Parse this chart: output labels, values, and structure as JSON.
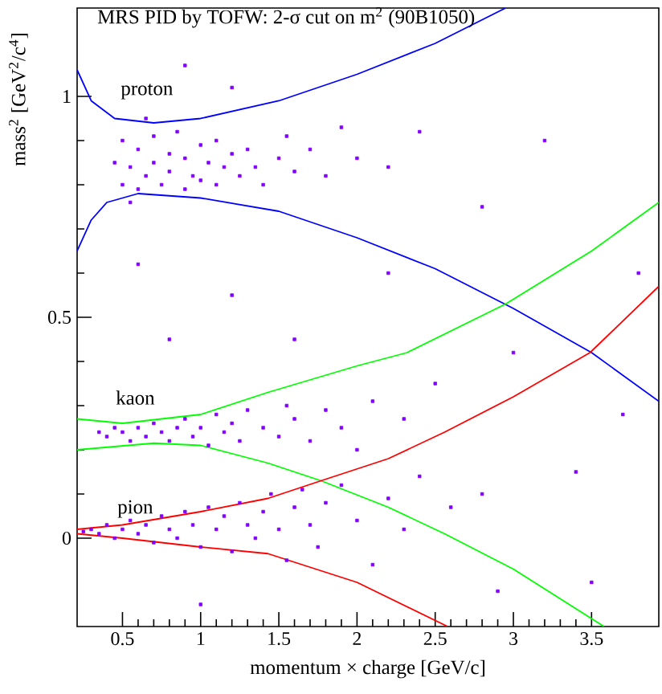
{
  "chart_data": {
    "type": "scatter",
    "title": "MRS PID by TOFW: 2-σ cut on m$^{2}$ (90B1050)",
    "xlabel": "momentum × charge [GeV/c]",
    "ylabel": "mass$^{2}$ [GeV$^{2}$/c$^{4}$]",
    "xlim": [
      0.21,
      3.93
    ],
    "ylim": [
      -0.2,
      1.2
    ],
    "xticks": [
      {
        "value": 0.5,
        "label": "0.5"
      },
      {
        "value": 1,
        "label": "1"
      },
      {
        "value": 1.5,
        "label": "1.5"
      },
      {
        "value": 2,
        "label": "2"
      },
      {
        "value": 2.5,
        "label": "2.5"
      },
      {
        "value": 3,
        "label": "3"
      },
      {
        "value": 3.5,
        "label": "3.5"
      }
    ],
    "yticks": [
      {
        "value": 0,
        "label": "0"
      },
      {
        "value": 0.5,
        "label": "0.5"
      },
      {
        "value": 1,
        "label": "1"
      }
    ],
    "annotations": [
      "proton",
      "kaon",
      "pion"
    ],
    "series": [
      {
        "color": "#8000ff",
        "marker": "square",
        "x": [
          0.45,
          0.5,
          0.5,
          0.55,
          0.6,
          0.6,
          0.65,
          0.7,
          0.7,
          0.75,
          0.8,
          0.8,
          0.85,
          0.9,
          0.9,
          0.95,
          1.0,
          1.0,
          1.05,
          1.1,
          1.1,
          1.15,
          1.2,
          1.25,
          1.3,
          1.35,
          1.4,
          1.5,
          1.55,
          1.6,
          1.7,
          1.8,
          1.9,
          2.0,
          2.2,
          2.4,
          0.65,
          0.55,
          1.2,
          0.9,
          0.35,
          0.4,
          0.45,
          0.5,
          0.55,
          0.6,
          0.65,
          0.7,
          0.75,
          0.8,
          0.85,
          0.9,
          0.95,
          1.0,
          1.05,
          1.1,
          1.15,
          1.2,
          1.25,
          1.3,
          1.4,
          1.5,
          1.55,
          1.6,
          1.7,
          1.8,
          1.9,
          2.1,
          2.3,
          2.0,
          0.25,
          0.3,
          0.35,
          0.4,
          0.45,
          0.5,
          0.55,
          0.6,
          0.65,
          0.7,
          0.75,
          0.8,
          0.85,
          0.9,
          0.95,
          1.0,
          1.05,
          1.1,
          1.15,
          1.2,
          1.25,
          1.3,
          1.35,
          1.4,
          1.45,
          1.5,
          1.55,
          1.6,
          1.65,
          1.7,
          1.75,
          1.8,
          1.9,
          2.0,
          2.1,
          2.2,
          2.3,
          2.4,
          2.6,
          2.8,
          0.6,
          1.2,
          2.5,
          3.0,
          3.4,
          3.7,
          3.8,
          2.8,
          3.2,
          2.2,
          1.6,
          0.8,
          3.5,
          1.0,
          2.9
        ],
        "values": [
          0.85,
          0.8,
          0.9,
          0.84,
          0.88,
          0.79,
          0.82,
          0.91,
          0.85,
          0.8,
          0.87,
          0.83,
          0.92,
          0.79,
          0.86,
          0.82,
          0.89,
          0.81,
          0.85,
          0.9,
          0.8,
          0.84,
          0.87,
          0.82,
          0.88,
          0.84,
          0.8,
          0.86,
          0.91,
          0.83,
          0.88,
          0.82,
          0.93,
          0.86,
          0.84,
          0.92,
          0.95,
          0.76,
          1.02,
          1.07,
          0.24,
          0.23,
          0.25,
          0.24,
          0.22,
          0.25,
          0.23,
          0.26,
          0.24,
          0.22,
          0.25,
          0.27,
          0.23,
          0.25,
          0.21,
          0.28,
          0.24,
          0.26,
          0.22,
          0.29,
          0.25,
          0.23,
          0.3,
          0.27,
          0.22,
          0.29,
          0.25,
          0.31,
          0.27,
          0.2,
          0.015,
          0.02,
          0.01,
          0.03,
          0.0,
          0.02,
          0.04,
          0.01,
          0.03,
          -0.01,
          0.05,
          0.02,
          0.0,
          0.06,
          0.03,
          -0.02,
          0.07,
          0.02,
          0.05,
          -0.03,
          0.08,
          0.03,
          0.0,
          0.06,
          0.1,
          0.02,
          -0.05,
          0.07,
          0.11,
          0.03,
          -0.02,
          0.08,
          0.12,
          0.04,
          -0.06,
          0.09,
          0.02,
          0.14,
          0.07,
          0.1,
          0.62,
          0.55,
          0.35,
          0.42,
          0.15,
          0.28,
          0.6,
          0.75,
          0.9,
          0.6,
          0.45,
          0.45,
          -0.1,
          -0.15,
          -0.12
        ]
      },
      {
        "type": "line",
        "color": "#0000ff",
        "marker": "none",
        "line_style": "solid",
        "x": [
          0.21,
          0.3,
          0.45,
          0.7,
          1.0,
          1.5,
          2.0,
          2.5,
          2.95
        ],
        "values": [
          1.06,
          0.99,
          0.95,
          0.94,
          0.95,
          0.99,
          1.05,
          1.12,
          1.2
        ]
      },
      {
        "type": "line",
        "color": "#0000ff",
        "marker": "none",
        "line_style": "solid",
        "x": [
          0.21,
          0.3,
          0.4,
          0.6,
          1.0,
          1.5,
          2.0,
          2.5,
          3.0,
          3.5,
          3.93
        ],
        "values": [
          0.65,
          0.72,
          0.76,
          0.78,
          0.77,
          0.74,
          0.68,
          0.61,
          0.52,
          0.42,
          0.31
        ]
      },
      {
        "type": "line",
        "color": "#00ff00",
        "marker": "none",
        "line_style": "solid",
        "x": [
          0.21,
          0.5,
          1.0,
          1.43,
          2.0,
          2.32,
          2.95,
          3.5,
          3.93
        ],
        "values": [
          0.27,
          0.26,
          0.28,
          0.33,
          0.39,
          0.42,
          0.53,
          0.65,
          0.76
        ]
      },
      {
        "type": "line",
        "color": "#00ff00",
        "marker": "none",
        "line_style": "solid",
        "x": [
          0.21,
          0.7,
          1.0,
          1.43,
          1.77,
          2.2,
          2.56,
          3.0,
          3.58
        ],
        "values": [
          0.2,
          0.215,
          0.21,
          0.17,
          0.13,
          0.07,
          0.01,
          -0.07,
          -0.2
        ]
      },
      {
        "type": "line",
        "color": "#ff0000",
        "marker": "none",
        "line_style": "solid",
        "x": [
          0.21,
          0.5,
          1.0,
          1.43,
          1.77,
          2.2,
          2.56,
          3.0,
          3.49,
          3.93
        ],
        "values": [
          0.02,
          0.03,
          0.06,
          0.09,
          0.13,
          0.18,
          0.24,
          0.32,
          0.42,
          0.57
        ]
      },
      {
        "type": "line",
        "color": "#ff0000",
        "marker": "none",
        "line_style": "solid",
        "x": [
          0.21,
          0.5,
          1.0,
          1.43,
          2.0,
          2.58
        ],
        "values": [
          0.01,
          0.0,
          -0.02,
          -0.035,
          -0.1,
          -0.2
        ]
      }
    ]
  }
}
